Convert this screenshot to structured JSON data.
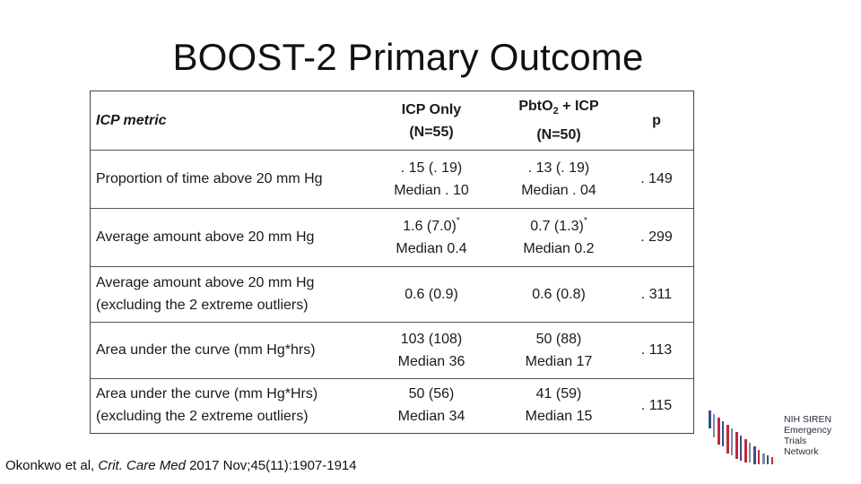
{
  "title": "BOOST-2 Primary Outcome",
  "table": {
    "header": {
      "metric": "ICP metric",
      "col1": "ICP Only\n(N=55)",
      "col2_main": "Pbt",
      "col2_o": "O",
      "col2_sub": "2",
      "col2_rest": " + ICP",
      "col2_n": "(N=50)",
      "col3": "p"
    },
    "rows": [
      {
        "metric": "Proportion of time above 20 mm Hg",
        "icp": ". 15 (. 19)\nMedian . 10",
        "pbto2": ". 13 (. 19)\nMedian . 04",
        "p": ". 149"
      },
      {
        "metric": "Average amount above 20 mm Hg",
        "icp_top": "1.6 (7.0)",
        "icp_bottom": "Median 0.4",
        "pbto2_top": "0.7 (1.3)",
        "pbto2_bottom": "Median 0.2",
        "star": "*",
        "p": ". 299"
      },
      {
        "metric": "Average amount above 20 mm Hg\n(excluding the 2 extreme outliers)",
        "icp": "0.6 (0.9)",
        "pbto2": "0.6 (0.8)",
        "p": ". 311"
      },
      {
        "metric": "Area under the curve (mm Hg*hrs)",
        "icp": "103 (108)\nMedian 36",
        "pbto2": "50 (88)\nMedian 17",
        "p": ". 113"
      },
      {
        "metric": "Area under the curve (mm Hg*Hrs)\n(excluding the 2 extreme outliers)",
        "icp": "50 (56)\nMedian 34",
        "pbto2": "41 (59)\nMedian 15",
        "p": ". 115"
      }
    ]
  },
  "citation": {
    "authors": "Okonkwo et al, ",
    "journal": "Crit. Care Med",
    "details": " 2017 Nov;45(11):1907-1914"
  },
  "logo": {
    "lines": [
      "NIH SIREN",
      "Emergency",
      "Trials",
      "Network"
    ],
    "colors": {
      "blue": "#3a4f8a",
      "red": "#c0283a",
      "gray": "#7a8aa0"
    }
  }
}
